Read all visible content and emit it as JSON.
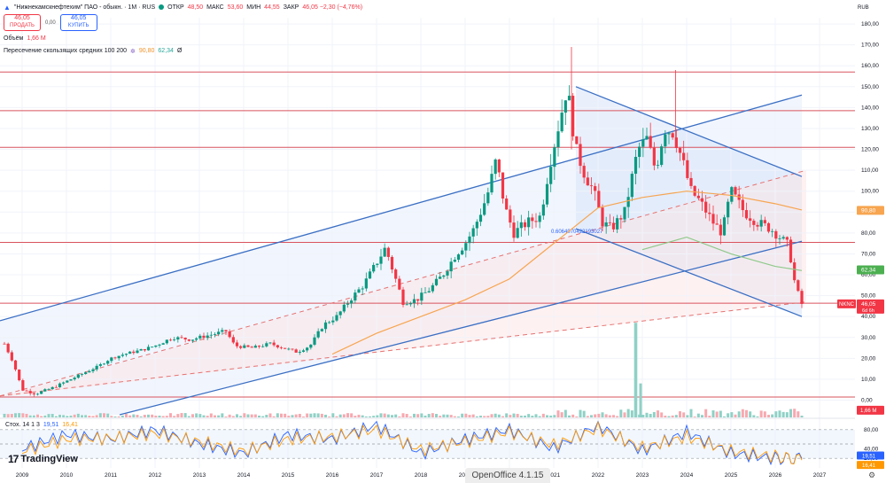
{
  "header": {
    "symbol": "\"Нижнекамскнефтехим\" ПАО - обыкн. · 1M · RUS",
    "ohlc": [
      {
        "key": "ОТКР",
        "value": "48,50"
      },
      {
        "key": "МАКС",
        "value": "53,60"
      },
      {
        "key": "МИН",
        "value": "44,55"
      },
      {
        "key": "ЗАКР",
        "value": "46,05 −2,30 (−4,76%)"
      }
    ]
  },
  "trade": {
    "sell_price": "46,05",
    "sell_label": "ПРОДАТЬ",
    "spread": "0,00",
    "buy_price": "46,05",
    "buy_label": "КУПИТЬ"
  },
  "indicators": {
    "volume_label": "Объём",
    "volume_value": "1,66 M",
    "ma_label": "Пересечение скользящих средних 100 200",
    "ma_fast": "90,80",
    "ma_slow": "62,34",
    "ma_extra": "Ø"
  },
  "stoch": {
    "label": "Стох. 14 1 3",
    "k": "19,51",
    "d": "16,41"
  },
  "currency": "RUB",
  "branding": {
    "logo_text": "TradingView",
    "watermark": "OpenOffice 4.1.15"
  },
  "colors": {
    "up": "#089981",
    "down": "#f23645",
    "channel": "#3a6fc4",
    "ma_fast": "#f7a550",
    "ma_slow": "#8fc98a",
    "hline": "#d9535e"
  },
  "chart_data": {
    "type": "candlestick",
    "x_axis": {
      "ticks": [
        "2009",
        "2010",
        "2011",
        "2012",
        "2013",
        "2014",
        "2015",
        "2016",
        "2017",
        "2018",
        "2019",
        "2020",
        "2021",
        "2022",
        "2023",
        "2024",
        "2025",
        "2026",
        "2027"
      ],
      "range": [
        2008.5,
        2027.8
      ]
    },
    "y_axis": {
      "ticks": [
        0,
        10,
        20,
        30,
        40,
        50,
        60,
        70,
        80,
        90,
        100,
        110,
        120,
        130,
        140,
        150,
        160,
        170,
        180
      ],
      "range": [
        -7,
        183
      ]
    },
    "horizontal_levels": [
      157,
      138.5,
      121,
      75.5,
      46.4,
      1.5
    ],
    "price_labels": [
      {
        "value": 90.8,
        "text": "90,80",
        "color": "#f7a550"
      },
      {
        "value": 62.34,
        "text": "62,34",
        "color": "#4caf50"
      },
      {
        "value": 46.05,
        "text": "46,05",
        "color": "#f23645",
        "tag": "NKNC",
        "sub": "6d 6h"
      }
    ],
    "fib_text": "0.6064070422193027",
    "price_path": [
      [
        2008.6,
        27
      ],
      [
        2008.8,
        18
      ],
      [
        2009.0,
        5
      ],
      [
        2009.3,
        3
      ],
      [
        2009.7,
        6
      ],
      [
        2010.0,
        9
      ],
      [
        2010.3,
        12
      ],
      [
        2010.7,
        16
      ],
      [
        2011.0,
        20
      ],
      [
        2011.3,
        22
      ],
      [
        2011.7,
        24
      ],
      [
        2012.0,
        26
      ],
      [
        2012.4,
        30
      ],
      [
        2012.8,
        29
      ],
      [
        2013.2,
        31
      ],
      [
        2013.6,
        33
      ],
      [
        2013.8,
        26
      ],
      [
        2014.2,
        25
      ],
      [
        2014.6,
        27
      ],
      [
        2014.9,
        25
      ],
      [
        2015.2,
        23
      ],
      [
        2015.5,
        26
      ],
      [
        2015.8,
        36
      ],
      [
        2016.1,
        40
      ],
      [
        2016.4,
        48
      ],
      [
        2016.7,
        55
      ],
      [
        2016.9,
        62
      ],
      [
        2017.2,
        73
      ],
      [
        2017.4,
        60
      ],
      [
        2017.6,
        47
      ],
      [
        2017.9,
        48
      ],
      [
        2018.2,
        53
      ],
      [
        2018.5,
        60
      ],
      [
        2018.8,
        70
      ],
      [
        2019.0,
        75
      ],
      [
        2019.2,
        82
      ],
      [
        2019.5,
        98
      ],
      [
        2019.7,
        115
      ],
      [
        2019.9,
        92
      ],
      [
        2020.1,
        80
      ],
      [
        2020.4,
        85
      ],
      [
        2020.7,
        88
      ],
      [
        2020.9,
        112
      ],
      [
        2021.2,
        140
      ],
      [
        2021.3,
        150
      ],
      [
        2021.5,
        120
      ],
      [
        2021.7,
        108
      ],
      [
        2021.9,
        100
      ],
      [
        2022.1,
        85
      ],
      [
        2022.3,
        82
      ],
      [
        2022.6,
        90
      ],
      [
        2022.9,
        120
      ],
      [
        2023.1,
        125
      ],
      [
        2023.3,
        110
      ],
      [
        2023.5,
        130
      ],
      [
        2023.7,
        128
      ],
      [
        2023.9,
        115
      ],
      [
        2024.1,
        100
      ],
      [
        2024.3,
        95
      ],
      [
        2024.6,
        85
      ],
      [
        2024.8,
        80
      ],
      [
        2025.0,
        100
      ],
      [
        2025.3,
        90
      ],
      [
        2025.6,
        85
      ],
      [
        2025.9,
        82
      ],
      [
        2026.1,
        78
      ],
      [
        2026.3,
        74
      ],
      [
        2026.45,
        55
      ],
      [
        2026.6,
        46
      ]
    ],
    "ma_fast_path": [
      [
        2016.0,
        22
      ],
      [
        2017.0,
        32
      ],
      [
        2018.0,
        40
      ],
      [
        2019.0,
        48
      ],
      [
        2020.0,
        58
      ],
      [
        2021.0,
        75
      ],
      [
        2022.0,
        92
      ],
      [
        2023.0,
        97
      ],
      [
        2024.0,
        100
      ],
      [
        2025.0,
        98
      ],
      [
        2026.0,
        94
      ],
      [
        2026.6,
        91
      ]
    ],
    "ma_slow_path": [
      [
        2023.0,
        72
      ],
      [
        2024.0,
        78
      ],
      [
        2025.0,
        70
      ],
      [
        2026.0,
        64
      ],
      [
        2026.6,
        62
      ]
    ],
    "channels": [
      {
        "from": [
          2008.5,
          38
        ],
        "to": [
          2026.6,
          146
        ]
      },
      {
        "from": [
          2011.2,
          -7
        ],
        "to": [
          2026.6,
          76
        ]
      },
      {
        "from": [
          2021.5,
          150
        ],
        "to": [
          2026.6,
          107
        ]
      },
      {
        "from": [
          2021.5,
          82
        ],
        "to": [
          2026.6,
          40
        ]
      }
    ],
    "dashed_lines": [
      {
        "from": [
          2008.5,
          2
        ],
        "to": [
          2026.7,
          47
        ],
        "color": "#e57373"
      },
      {
        "from": [
          2008.5,
          2
        ],
        "to": [
          2026.7,
          110
        ],
        "color": "#e57373"
      }
    ],
    "volume": {
      "spike_year": 2022.85,
      "spike_height": 37,
      "unit_label": "1,66 M"
    },
    "stochastic": {
      "levels": [
        80,
        50,
        20
      ],
      "ticks": [
        80,
        40,
        20
      ],
      "k_path": [
        [
          2009,
          40
        ],
        [
          2010,
          70
        ],
        [
          2011,
          60
        ],
        [
          2012,
          80
        ],
        [
          2013,
          50
        ],
        [
          2014,
          30
        ],
        [
          2015,
          70
        ],
        [
          2016,
          60
        ],
        [
          2017,
          90
        ],
        [
          2018,
          30
        ],
        [
          2019,
          60
        ],
        [
          2020,
          80
        ],
        [
          2021,
          40
        ],
        [
          2022,
          90
        ],
        [
          2023,
          35
        ],
        [
          2024,
          75
        ],
        [
          2025,
          30
        ],
        [
          2026,
          20
        ],
        [
          2026.6,
          19.51
        ]
      ],
      "d_path": [
        [
          2009,
          35
        ],
        [
          2010,
          60
        ],
        [
          2011,
          62
        ],
        [
          2012,
          72
        ],
        [
          2013,
          55
        ],
        [
          2014,
          35
        ],
        [
          2015,
          60
        ],
        [
          2016,
          65
        ],
        [
          2017,
          80
        ],
        [
          2018,
          38
        ],
        [
          2019,
          55
        ],
        [
          2020,
          75
        ],
        [
          2021,
          48
        ],
        [
          2022,
          82
        ],
        [
          2023,
          42
        ],
        [
          2024,
          65
        ],
        [
          2025,
          35
        ],
        [
          2026,
          24
        ],
        [
          2026.6,
          16.41
        ]
      ]
    }
  }
}
